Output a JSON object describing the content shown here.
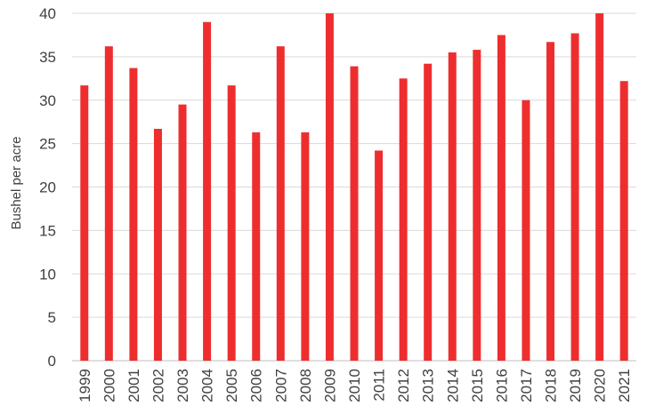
{
  "chart_data": {
    "type": "bar",
    "title": "",
    "xlabel": "",
    "ylabel": "Bushel per acre",
    "ylim": [
      0,
      40
    ],
    "yticks": [
      0,
      5,
      10,
      15,
      20,
      25,
      30,
      35,
      40
    ],
    "grid": "horizontal",
    "legend": "none",
    "bar_color": "#EE2E2E",
    "categories": [
      "1999",
      "2000",
      "2001",
      "2002",
      "2003",
      "2004",
      "2005",
      "2006",
      "2007",
      "2008",
      "2009",
      "2010",
      "2011",
      "2012",
      "2013",
      "2014",
      "2015",
      "2016",
      "2017",
      "2018",
      "2019",
      "2020",
      "2021"
    ],
    "values": [
      31.7,
      36.2,
      33.7,
      26.7,
      29.5,
      39.0,
      31.7,
      26.3,
      36.2,
      26.3,
      40.0,
      33.9,
      24.2,
      32.5,
      34.2,
      35.5,
      35.8,
      37.5,
      30.0,
      36.7,
      37.7,
      40.0,
      32.2
    ]
  }
}
